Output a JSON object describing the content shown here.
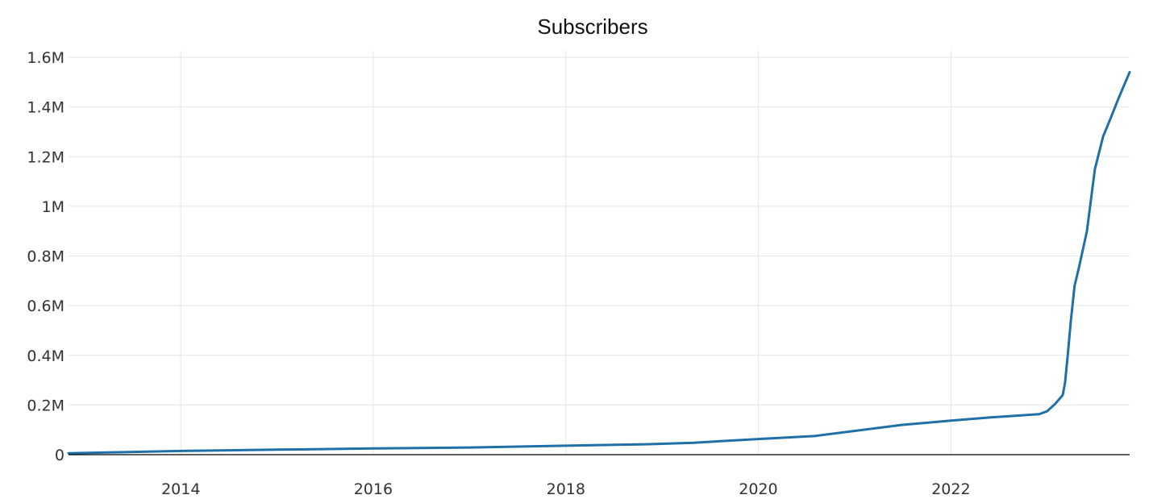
{
  "chart_data": {
    "type": "line",
    "title": "Subscribers",
    "xlabel": "",
    "ylabel": "",
    "x_axis": {
      "type": "date",
      "range": [
        "2012-11-01",
        "2023-11-10"
      ],
      "ticks": [
        {
          "value": "2014-01-01",
          "label": "2014"
        },
        {
          "value": "2016-01-01",
          "label": "2016"
        },
        {
          "value": "2018-01-01",
          "label": "2018"
        },
        {
          "value": "2020-01-01",
          "label": "2020"
        },
        {
          "value": "2022-01-01",
          "label": "2022"
        }
      ]
    },
    "y_axis": {
      "range": [
        0,
        1600000
      ],
      "ticks": [
        {
          "value": 0,
          "label": "0"
        },
        {
          "value": 200000,
          "label": "0.2M"
        },
        {
          "value": 400000,
          "label": "0.4M"
        },
        {
          "value": 600000,
          "label": "0.6M"
        },
        {
          "value": 800000,
          "label": "0.8M"
        },
        {
          "value": 1000000,
          "label": "1M"
        },
        {
          "value": 1200000,
          "label": "1.2M"
        },
        {
          "value": 1400000,
          "label": "1.4M"
        },
        {
          "value": 1600000,
          "label": "1.6M"
        }
      ]
    },
    "grid": true,
    "legend": "none",
    "series": [
      {
        "color": "#1f6fa8",
        "points": [
          {
            "x": "2012-11-01",
            "y": 6000
          },
          {
            "x": "2013-06-01",
            "y": 10000
          },
          {
            "x": "2014-01-01",
            "y": 15000
          },
          {
            "x": "2015-01-01",
            "y": 20000
          },
          {
            "x": "2016-01-01",
            "y": 25000
          },
          {
            "x": "2017-01-01",
            "y": 29000
          },
          {
            "x": "2018-01-01",
            "y": 36000
          },
          {
            "x": "2018-11-01",
            "y": 42000
          },
          {
            "x": "2019-05-01",
            "y": 48000
          },
          {
            "x": "2020-01-01",
            "y": 63000
          },
          {
            "x": "2020-08-01",
            "y": 75000
          },
          {
            "x": "2021-07-01",
            "y": 120000
          },
          {
            "x": "2022-01-01",
            "y": 137000
          },
          {
            "x": "2022-06-01",
            "y": 150000
          },
          {
            "x": "2022-12-01",
            "y": 163000
          },
          {
            "x": "2023-01-01",
            "y": 175000
          },
          {
            "x": "2023-02-01",
            "y": 205000
          },
          {
            "x": "2023-03-01",
            "y": 240000
          },
          {
            "x": "2023-03-10",
            "y": 290000
          },
          {
            "x": "2023-03-20",
            "y": 400000
          },
          {
            "x": "2023-04-01",
            "y": 540000
          },
          {
            "x": "2023-04-15",
            "y": 680000
          },
          {
            "x": "2023-05-01",
            "y": 750000
          },
          {
            "x": "2023-06-01",
            "y": 900000
          },
          {
            "x": "2023-07-01",
            "y": 1150000
          },
          {
            "x": "2023-08-01",
            "y": 1280000
          },
          {
            "x": "2023-09-01",
            "y": 1360000
          },
          {
            "x": "2023-10-01",
            "y": 1440000
          },
          {
            "x": "2023-11-10",
            "y": 1540000
          }
        ]
      }
    ]
  }
}
